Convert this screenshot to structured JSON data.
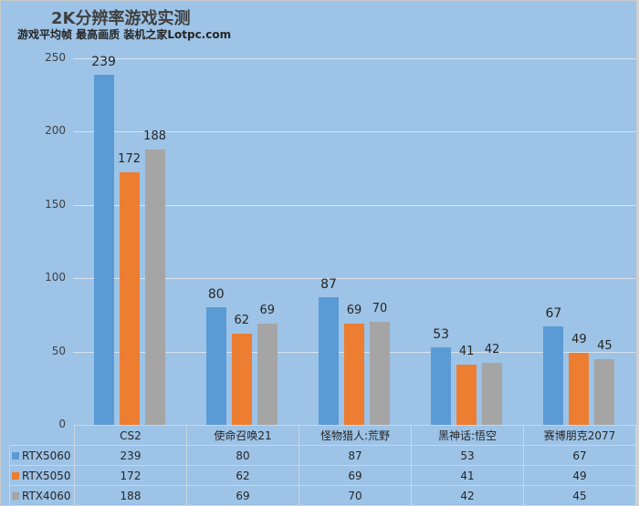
{
  "title": "2K分辨率游戏实测",
  "subtitle": "游戏平均帧 最高画质 装机之家Lotpc.com",
  "colors": {
    "RTX5060": "#5b9bd5",
    "RTX5050": "#ed7d31",
    "RTX4060": "#a5a5a5",
    "background": "#9dc3e6"
  },
  "chart_data": {
    "type": "bar",
    "title": "2K分辨率游戏实测",
    "subtitle": "游戏平均帧 最高画质 装机之家Lotpc.com",
    "categories": [
      "CS2",
      "使命召唤21",
      "怪物猎人:荒野",
      "黑神话:悟空",
      "赛博朋克2077"
    ],
    "series": [
      {
        "name": "RTX5060",
        "color": "#5b9bd5",
        "values": [
          239,
          80,
          87,
          53,
          67
        ]
      },
      {
        "name": "RTX5050",
        "color": "#ed7d31",
        "values": [
          172,
          62,
          69,
          41,
          49
        ]
      },
      {
        "name": "RTX4060",
        "color": "#a5a5a5",
        "values": [
          188,
          69,
          70,
          42,
          45
        ]
      }
    ],
    "xlabel": "",
    "ylabel": "",
    "ylim": [
      0,
      250
    ],
    "yticks": [
      0,
      50,
      100,
      150,
      200,
      250
    ],
    "grid": true,
    "legend_position": "data-table",
    "data_labels": true
  }
}
